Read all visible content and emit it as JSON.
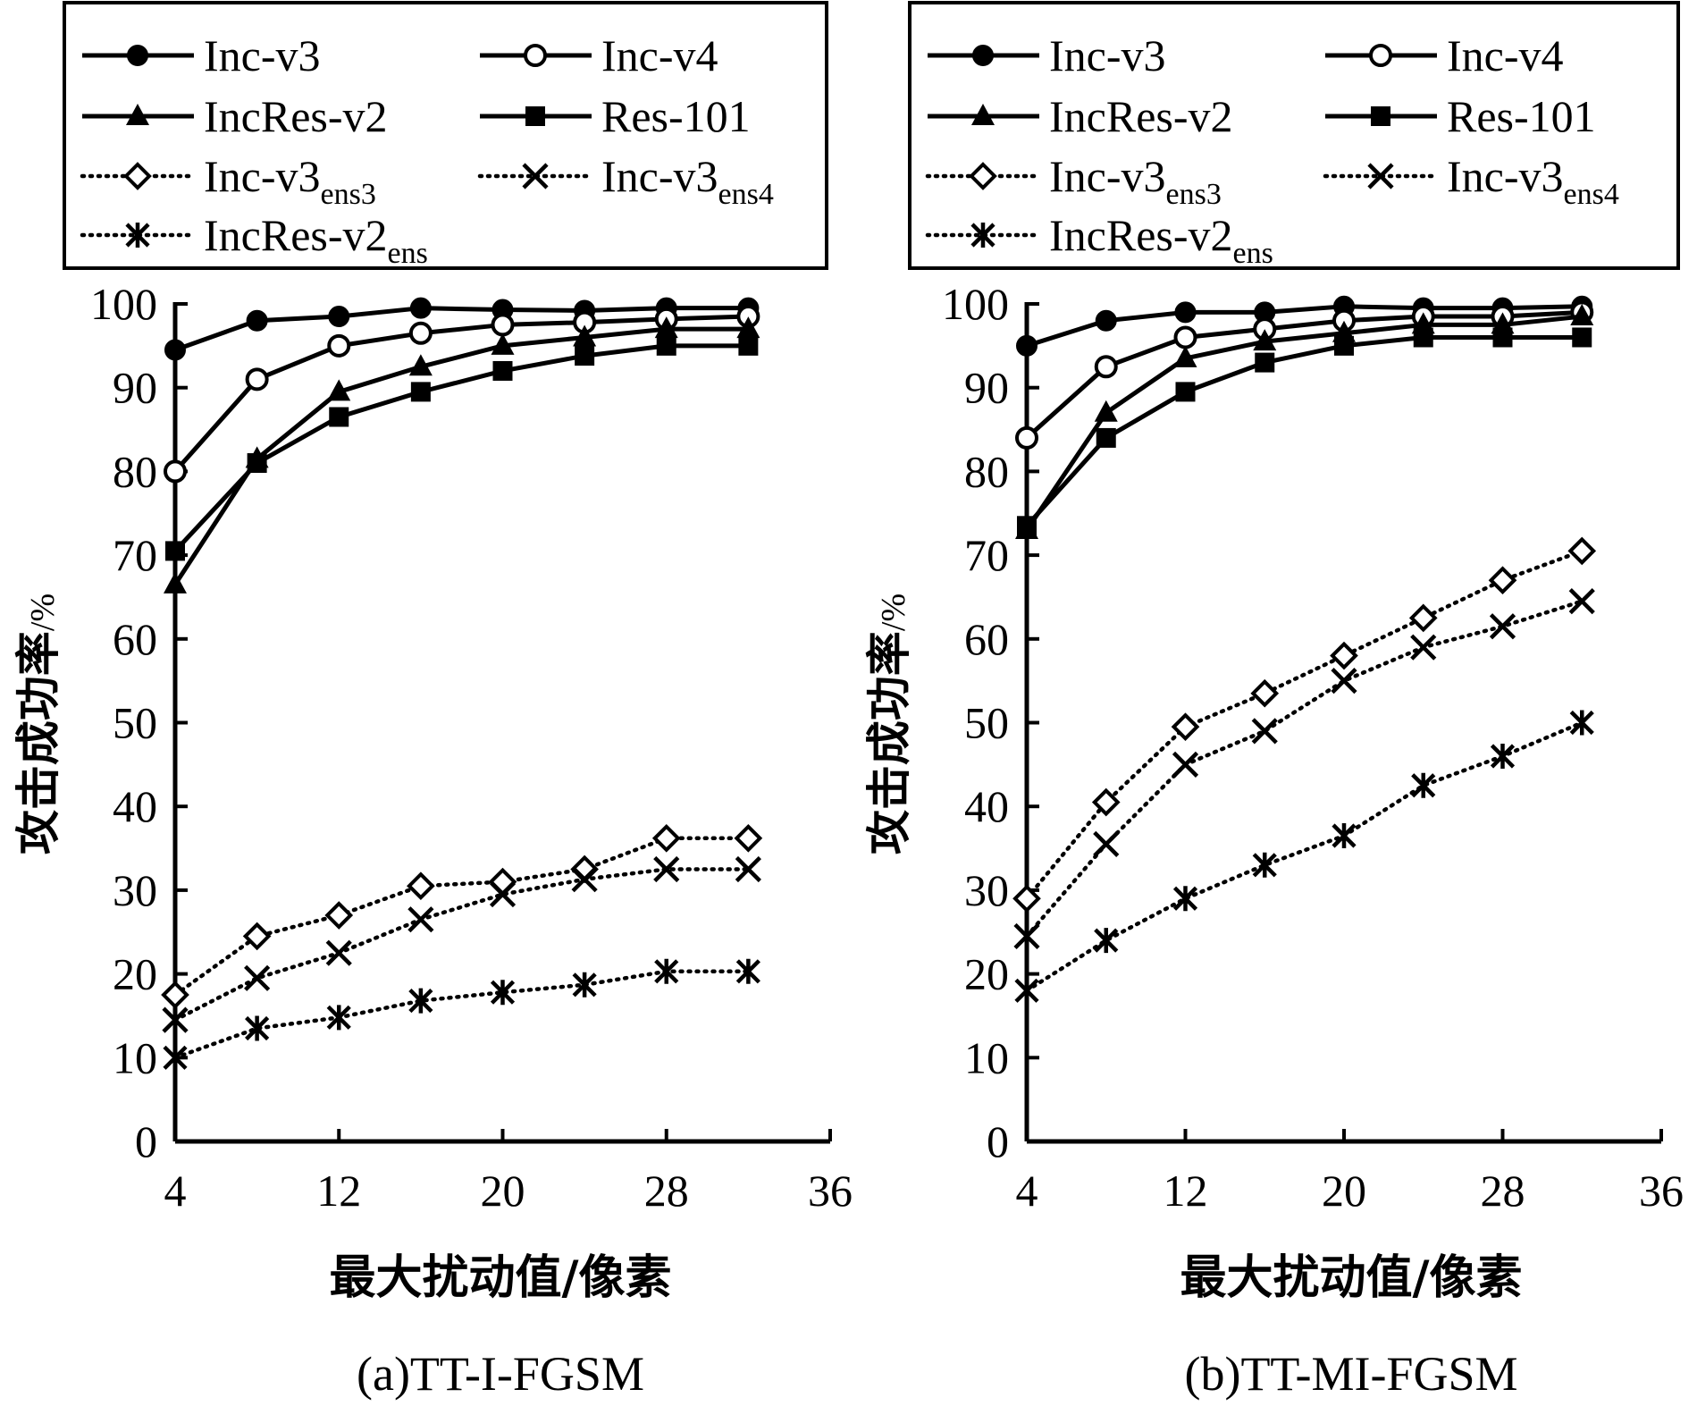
{
  "chart_data": [
    {
      "type": "line",
      "caption": "(a)TT-I-FGSM",
      "xlabel": "最大扰动值/像素",
      "ylabel_main": "攻击成功率",
      "ylabel_unit": "/%",
      "xlim": [
        4,
        36
      ],
      "ylim": [
        0,
        100
      ],
      "xticks": [
        4,
        12,
        20,
        28,
        36
      ],
      "yticks": [
        0,
        10,
        20,
        30,
        40,
        50,
        60,
        70,
        80,
        90,
        100
      ],
      "grid": false,
      "legend_position": "top",
      "x": [
        4,
        8,
        12,
        16,
        20,
        24,
        28,
        32
      ],
      "series": [
        {
          "name": "Inc-v3",
          "sub": "",
          "marker": "filled-circle",
          "line": "solid",
          "values": [
            94.5,
            98,
            98.5,
            99.5,
            99.3,
            99.2,
            99.5,
            99.5
          ]
        },
        {
          "name": "Inc-v4",
          "sub": "",
          "marker": "open-circle",
          "line": "solid",
          "values": [
            80,
            91,
            95,
            96.5,
            97.5,
            97.8,
            98.2,
            98.5
          ]
        },
        {
          "name": "IncRes-v2",
          "sub": "",
          "marker": "filled-triangle",
          "line": "solid",
          "values": [
            66.5,
            81.5,
            89.5,
            92.5,
            95,
            96,
            97,
            97
          ]
        },
        {
          "name": "Res-101",
          "sub": "",
          "marker": "filled-square",
          "line": "solid",
          "values": [
            70.5,
            81,
            86.5,
            89.5,
            92,
            93.8,
            95,
            95
          ]
        },
        {
          "name": "Inc-v3",
          "sub": "ens3",
          "marker": "open-diamond",
          "line": "dotted",
          "values": [
            17.5,
            24.5,
            27,
            30.5,
            31,
            32.5,
            36.2,
            36.2
          ]
        },
        {
          "name": "Inc-v3",
          "sub": "ens4",
          "marker": "x",
          "line": "dotted",
          "values": [
            14.5,
            19.5,
            22.5,
            26.5,
            29.5,
            31.3,
            32.5,
            32.5
          ]
        },
        {
          "name": "IncRes-v2",
          "sub": "ens",
          "marker": "asterisk",
          "line": "dotted",
          "values": [
            10,
            13.5,
            14.8,
            16.8,
            17.8,
            18.7,
            20.3,
            20.3
          ]
        }
      ]
    },
    {
      "type": "line",
      "caption": "(b)TT-MI-FGSM",
      "xlabel": "最大扰动值/像素",
      "ylabel_main": "攻击成功率",
      "ylabel_unit": "/%",
      "xlim": [
        4,
        36
      ],
      "ylim": [
        0,
        100
      ],
      "xticks": [
        4,
        12,
        20,
        28,
        36
      ],
      "yticks": [
        0,
        10,
        20,
        30,
        40,
        50,
        60,
        70,
        80,
        90,
        100
      ],
      "grid": false,
      "legend_position": "top",
      "x": [
        4,
        8,
        12,
        16,
        20,
        24,
        28,
        32
      ],
      "series": [
        {
          "name": "Inc-v3",
          "sub": "",
          "marker": "filled-circle",
          "line": "solid",
          "values": [
            95,
            98,
            99,
            99,
            99.7,
            99.5,
            99.5,
            99.7
          ]
        },
        {
          "name": "Inc-v4",
          "sub": "",
          "marker": "open-circle",
          "line": "solid",
          "values": [
            84,
            92.5,
            96,
            97,
            98,
            98.5,
            98.5,
            99
          ]
        },
        {
          "name": "IncRes-v2",
          "sub": "",
          "marker": "filled-triangle",
          "line": "solid",
          "values": [
            73,
            87,
            93.5,
            95.5,
            96.5,
            97.5,
            97.5,
            98.5
          ]
        },
        {
          "name": "Res-101",
          "sub": "",
          "marker": "filled-square",
          "line": "solid",
          "values": [
            73.5,
            84,
            89.5,
            93,
            95,
            96,
            96,
            96
          ]
        },
        {
          "name": "Inc-v3",
          "sub": "ens3",
          "marker": "open-diamond",
          "line": "dotted",
          "values": [
            29,
            40.5,
            49.5,
            53.5,
            58,
            62.5,
            67,
            70.5
          ]
        },
        {
          "name": "Inc-v3",
          "sub": "ens4",
          "marker": "x",
          "line": "dotted",
          "values": [
            24.5,
            35.5,
            45,
            49,
            55,
            59,
            61.5,
            64.5
          ]
        },
        {
          "name": "IncRes-v2",
          "sub": "ens",
          "marker": "asterisk",
          "line": "dotted",
          "values": [
            18,
            24,
            29,
            33,
            36.5,
            42.5,
            46,
            50
          ]
        }
      ]
    }
  ]
}
